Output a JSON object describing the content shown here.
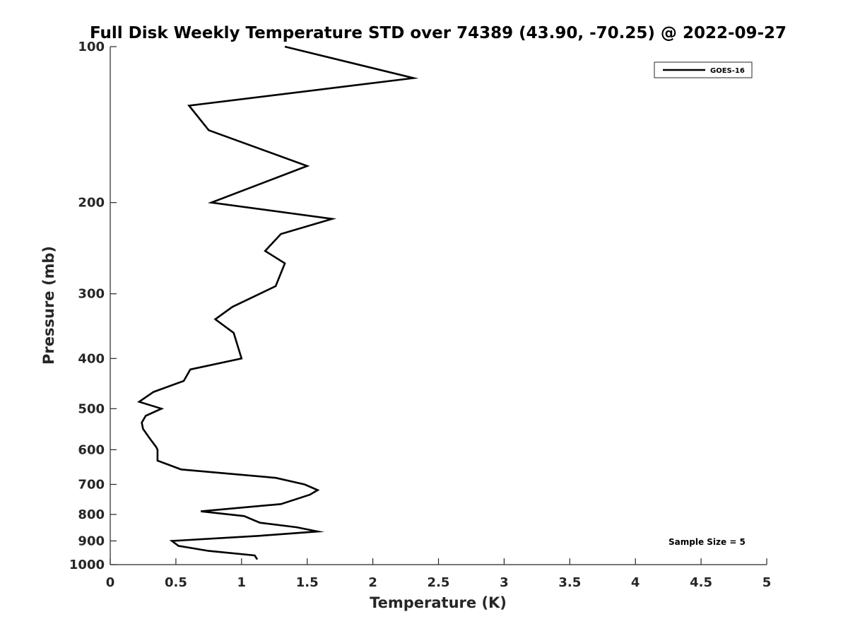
{
  "chart_data": {
    "type": "line",
    "title": "Full Disk Weekly Temperature STD over 74389 (43.90, -70.25) @ 2022-09-27",
    "xlabel": "Temperature (K)",
    "ylabel": "Pressure (mb)",
    "xlim": [
      0,
      5
    ],
    "ylim": [
      100,
      1000
    ],
    "yscale": "log",
    "y_reversed": true,
    "x_ticks": [
      0,
      0.5,
      1,
      1.5,
      2,
      2.5,
      3,
      3.5,
      4,
      4.5,
      5
    ],
    "x_tick_labels": [
      "0",
      "0.5",
      "1",
      "1.5",
      "2",
      "2.5",
      "3",
      "3.5",
      "4",
      "4.5",
      "5"
    ],
    "y_ticks": [
      100,
      200,
      300,
      400,
      500,
      600,
      700,
      800,
      900,
      1000
    ],
    "y_tick_labels": [
      "100",
      "200",
      "300",
      "400",
      "500",
      "600",
      "700",
      "800",
      "900",
      "1000"
    ],
    "grid": false,
    "legend_position": "top-right",
    "series": [
      {
        "name": "GOES-16",
        "color": "#000000",
        "x": [
          1.33,
          2.31,
          0.6,
          0.75,
          1.5,
          0.77,
          1.69,
          1.3,
          1.18,
          1.33,
          1.26,
          0.93,
          0.8,
          0.94,
          1.0,
          0.61,
          0.56,
          0.33,
          0.22,
          0.39,
          0.27,
          0.24,
          0.25,
          0.3,
          0.35,
          0.36,
          0.36,
          0.54,
          1.26,
          1.48,
          1.58,
          1.52,
          1.3,
          0.69,
          1.02,
          1.14,
          1.42,
          1.58,
          1.13,
          0.47,
          0.52,
          0.75,
          1.1,
          1.12
        ],
        "y": [
          100,
          115,
          130,
          145,
          170,
          200,
          215,
          230,
          248,
          262,
          290,
          318,
          336,
          357,
          400,
          420,
          442,
          464,
          485,
          500,
          516,
          532,
          547,
          570,
          593,
          600,
          630,
          655,
          680,
          700,
          718,
          733,
          764,
          789,
          806,
          830,
          847,
          863,
          880,
          900,
          920,
          941,
          960,
          977
        ]
      }
    ],
    "annotations": [
      "Sample Size = 5"
    ]
  }
}
